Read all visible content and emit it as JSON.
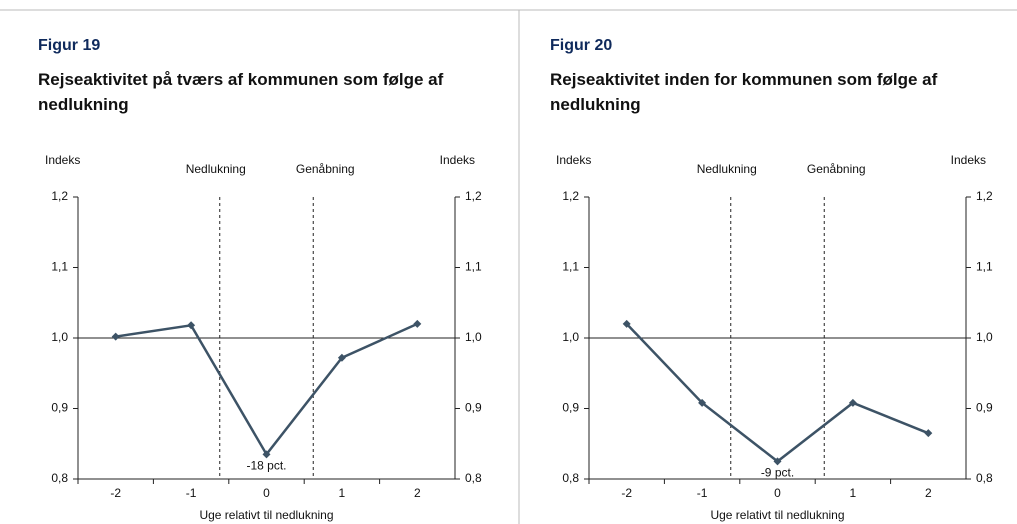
{
  "chart_data": [
    {
      "type": "line",
      "figure": "Figur 19",
      "title": "Rejseaktivitet på tværs af kommunen som følge af nedlukning",
      "y_label": "Indeks",
      "y2_label": "Indeks",
      "x_label": "Uge relativt til nedlukning",
      "annotations": [
        "Nedlukning",
        "Genåbning",
        "-18 pct."
      ],
      "categories": [
        "-2",
        "-1",
        "0",
        "1",
        "2"
      ],
      "series": [
        {
          "color": "#3d5366",
          "values": [
            1.002,
            1.018,
            0.835,
            0.972,
            1.02
          ]
        }
      ],
      "ylim": [
        0.8,
        1.2
      ],
      "yticks": [
        {
          "value": 0.8,
          "label": "0,8"
        },
        {
          "value": 0.9,
          "label": "0,9"
        },
        {
          "value": 1.0,
          "label": "1,0"
        },
        {
          "value": 1.1,
          "label": "1,1"
        },
        {
          "value": 1.2,
          "label": "1,2"
        }
      ],
      "hline": 1
    },
    {
      "type": "line",
      "figure": "Figur 20",
      "title": "Rejseaktivitet inden for kommunen som følge af nedlukning",
      "y_label": "Indeks",
      "y2_label": "Indeks",
      "x_label": "Uge relativt til nedlukning",
      "annotations": [
        "Nedlukning",
        "Genåbning",
        "-9 pct."
      ],
      "categories": [
        "-2",
        "-1",
        "0",
        "1",
        "2"
      ],
      "series": [
        {
          "color": "#3d5366",
          "values": [
            1.02,
            0.908,
            0.825,
            0.908,
            0.865
          ]
        }
      ],
      "ylim": [
        0.8,
        1.2
      ],
      "yticks": [
        {
          "value": 0.8,
          "label": "0,8"
        },
        {
          "value": 0.9,
          "label": "0,9"
        },
        {
          "value": 1.0,
          "label": "1,0"
        },
        {
          "value": 1.1,
          "label": "1,1"
        },
        {
          "value": 1.2,
          "label": "1,2"
        }
      ],
      "hline": 1
    }
  ]
}
